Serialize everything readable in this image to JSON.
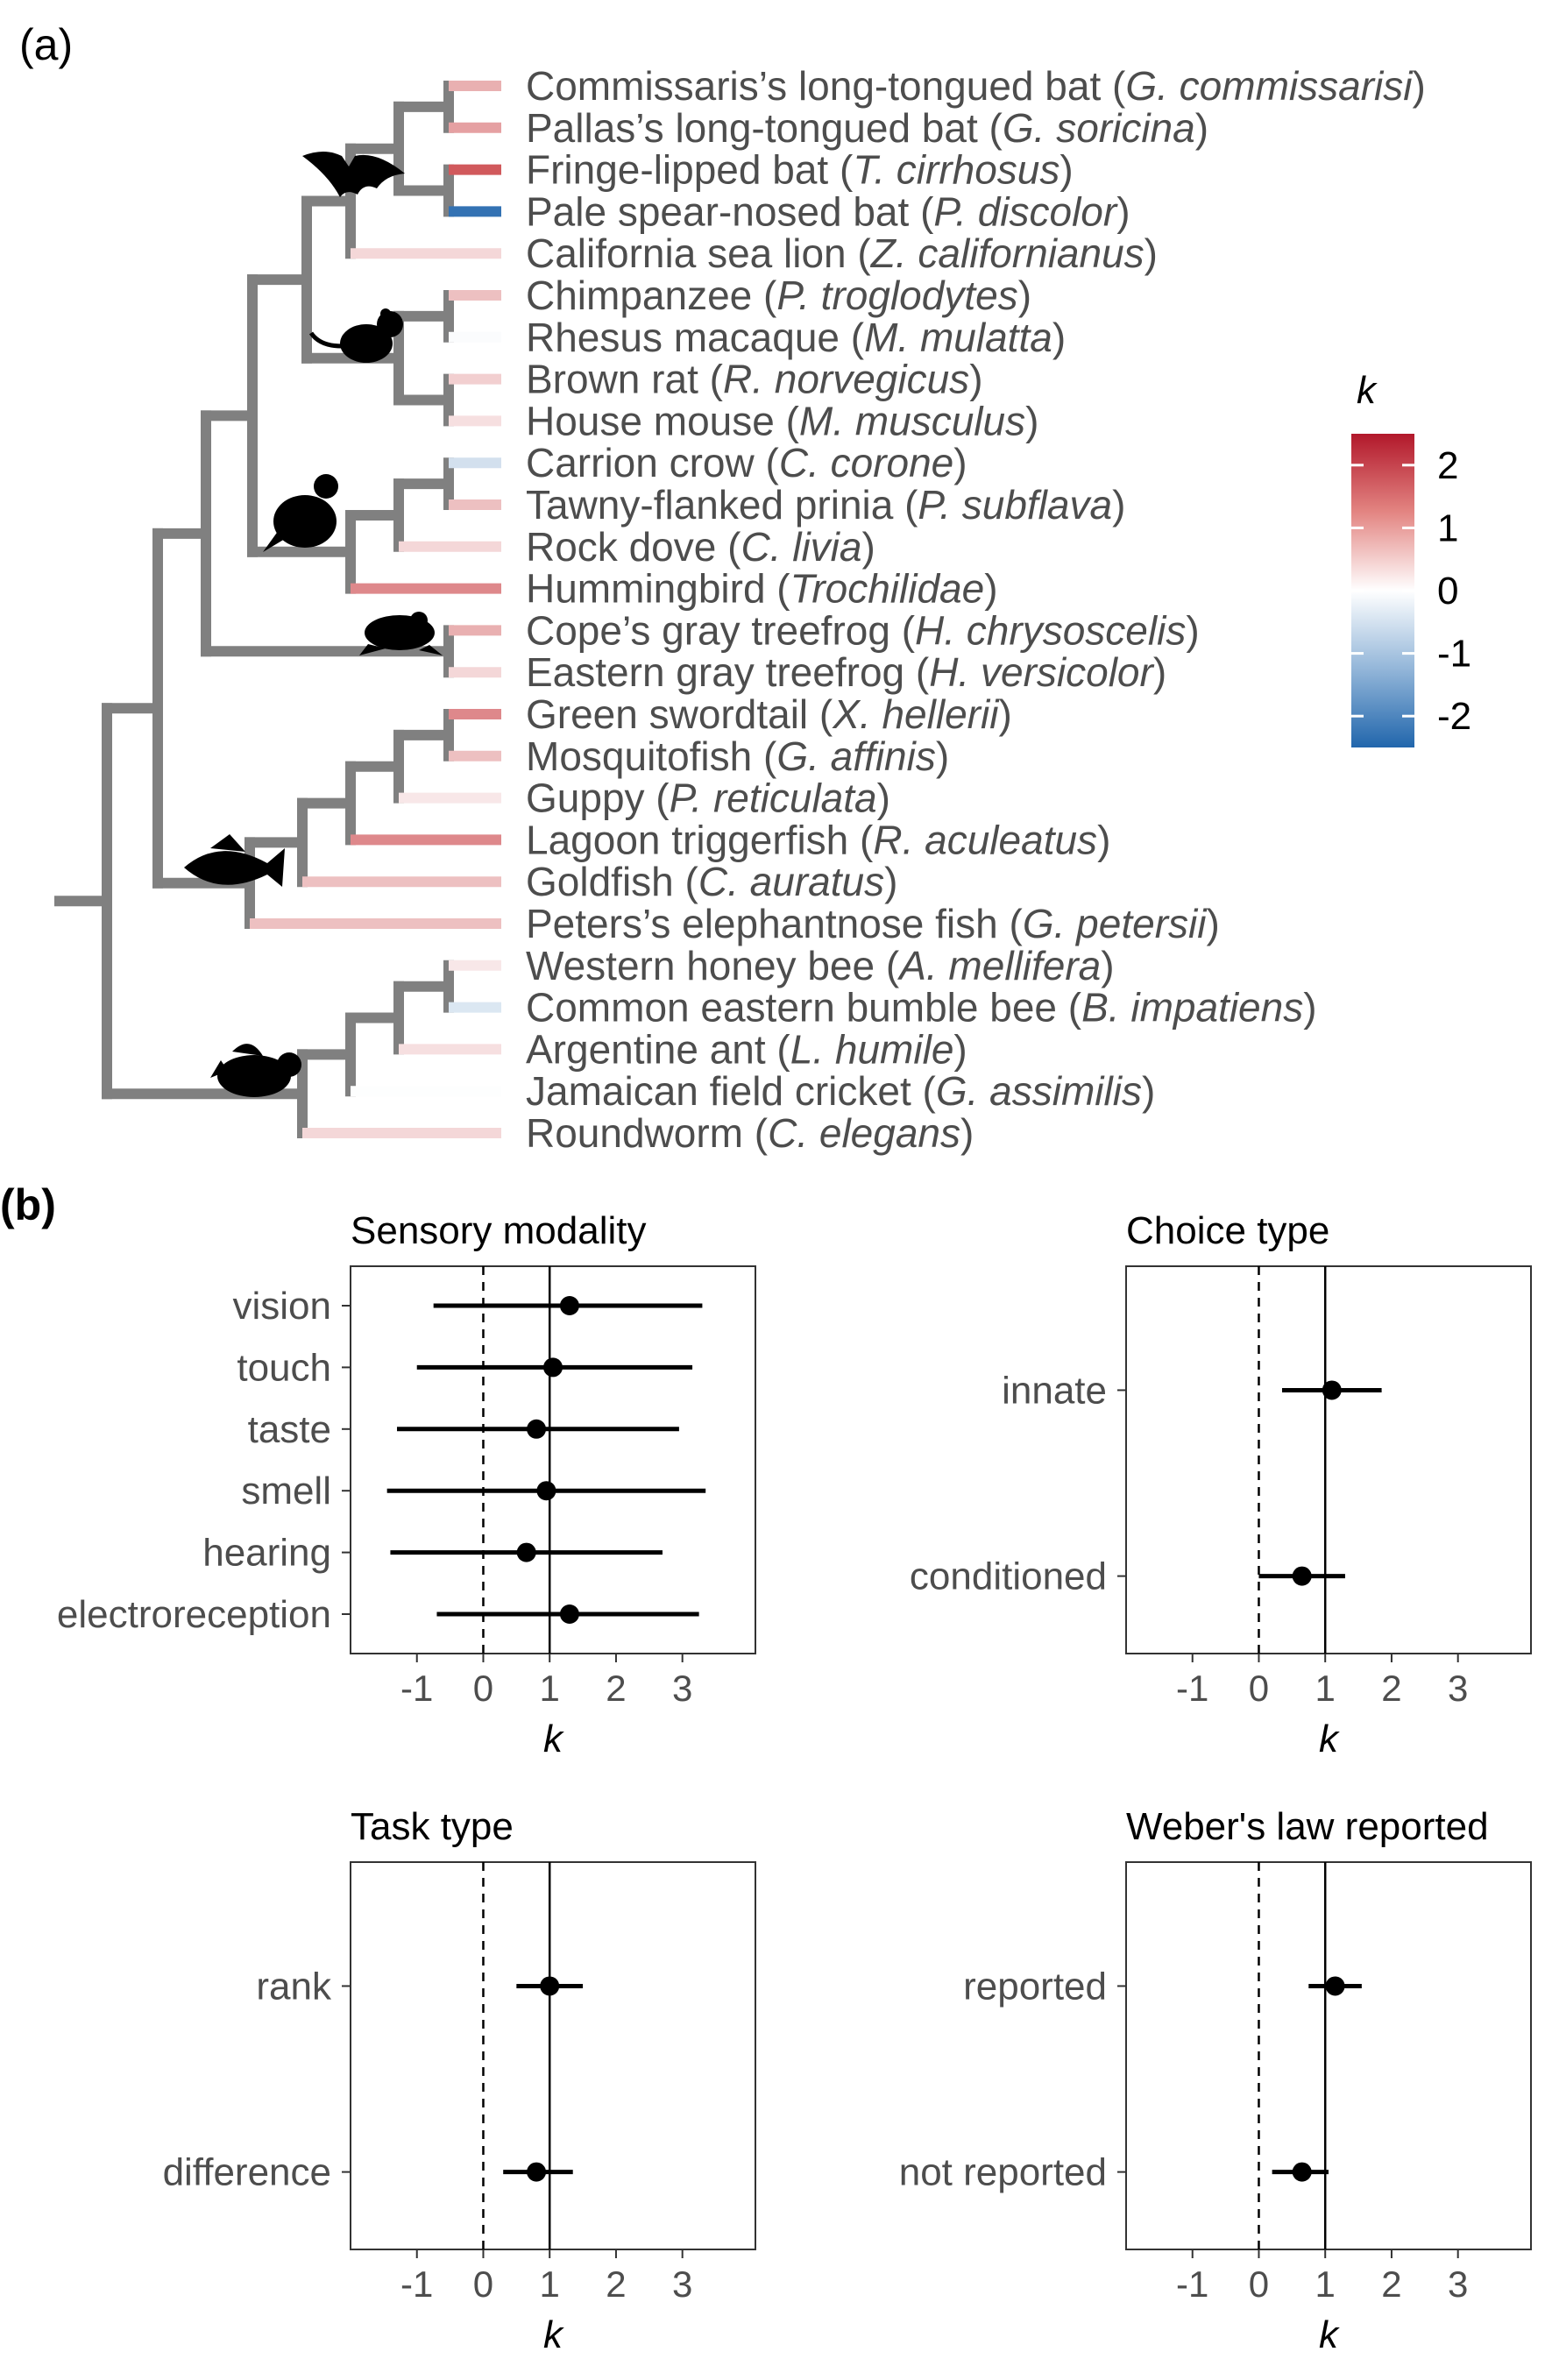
{
  "panel_a_label": "(a)",
  "panel_b_label": "(b)",
  "colors": {
    "tree_gray": "#808080",
    "neg": "#2166ac",
    "mid": "#ffffff",
    "pos": "#c8393d"
  },
  "legend": {
    "title": "k",
    "ticks": [
      "2",
      "1",
      "0",
      "-1",
      "-2"
    ],
    "range": [
      -2.5,
      2.5
    ]
  },
  "tips": [
    {
      "common": "Commissaris’s long-tongued bat",
      "sci": "G.  commissarisi",
      "k": 1.0
    },
    {
      "common": "Pallas’s long-tongued bat",
      "sci": "G.  soricina",
      "k": 1.2
    },
    {
      "common": "Fringe-lipped bat",
      "sci": "T.  cirrhosus",
      "k": 2.1
    },
    {
      "common": "Pale spear-nosed bat",
      "sci": "P.  discolor",
      "k": -2.3
    },
    {
      "common": "California sea lion",
      "sci": "Z.  californianus",
      "k": 0.5
    },
    {
      "common": "Chimpanzee",
      "sci": "P.  troglodytes",
      "k": 0.8
    },
    {
      "common": "Rhesus macaque",
      "sci": "M.  mulatta",
      "k": -0.05
    },
    {
      "common": "Brown rat",
      "sci": "R.  norvegicus",
      "k": 0.6
    },
    {
      "common": "House mouse",
      "sci": "M.  musculus",
      "k": 0.4
    },
    {
      "common": "Carrion crow",
      "sci": "C.  corone",
      "k": -0.5
    },
    {
      "common": "Tawny-flanked prinia",
      "sci": "P.  subflava",
      "k": 0.8
    },
    {
      "common": "Rock dove",
      "sci": "C.  livia",
      "k": 0.5
    },
    {
      "common": "Hummingbird",
      "sci": "Trochilidae",
      "k": 1.5
    },
    {
      "common": "Cope’s gray treefrog",
      "sci": "H.  chrysoscelis",
      "k": 1.0
    },
    {
      "common": "Eastern gray treefrog",
      "sci": "H.  versicolor",
      "k": 0.5
    },
    {
      "common": "Green swordtail",
      "sci": "X.  hellerii",
      "k": 1.5
    },
    {
      "common": "Mosquitofish",
      "sci": "G.  affinis",
      "k": 0.8
    },
    {
      "common": "Guppy",
      "sci": "P.  reticulata",
      "k": 0.3
    },
    {
      "common": "Lagoon triggerfish",
      "sci": "R.  aculeatus",
      "k": 1.5
    },
    {
      "common": "Goldfish",
      "sci": "C.  auratus",
      "k": 0.8
    },
    {
      "common": "Peters’s elephantnose fish",
      "sci": "G.  petersii",
      "k": 0.8
    },
    {
      "common": "Western honey bee",
      "sci": "A.  mellifera",
      "k": 0.3
    },
    {
      "common": "Common eastern bumble bee",
      "sci": "B.  impatiens",
      "k": -0.4
    },
    {
      "common": "Argentine ant",
      "sci": "L.  humile",
      "k": 0.4
    },
    {
      "common": "Jamaican field cricket",
      "sci": "G.  assimilis",
      "k": -0.02
    },
    {
      "common": "Roundworm",
      "sci": "C.  elegans",
      "k": 0.5
    }
  ],
  "chart_data": [
    {
      "type": "forest",
      "title": "Sensory modality",
      "xlabel": "k",
      "xlim": [
        -2,
        4.1
      ],
      "xticks": [
        -1,
        0,
        1,
        2,
        3
      ],
      "dashed_x": 0,
      "solid_x": 1,
      "categories": [
        "vision",
        "touch",
        "taste",
        "smell",
        "hearing",
        "electroreception"
      ],
      "estimate": [
        1.3,
        1.05,
        0.8,
        0.95,
        0.65,
        1.3
      ],
      "lower": [
        -0.75,
        -1.0,
        -1.3,
        -1.45,
        -1.4,
        -0.7
      ],
      "upper": [
        3.3,
        3.15,
        2.95,
        3.35,
        2.7,
        3.25
      ]
    },
    {
      "type": "forest",
      "title": "Choice type",
      "xlabel": "k",
      "xlim": [
        -2,
        4.1
      ],
      "xticks": [
        -1,
        0,
        1,
        2,
        3
      ],
      "dashed_x": 0,
      "solid_x": 1,
      "categories": [
        "innate",
        "conditioned"
      ],
      "estimate": [
        1.1,
        0.65
      ],
      "lower": [
        0.35,
        0.0
      ],
      "upper": [
        1.85,
        1.3
      ]
    },
    {
      "type": "forest",
      "title": "Task type",
      "xlabel": "k",
      "xlim": [
        -2,
        4.1
      ],
      "xticks": [
        -1,
        0,
        1,
        2,
        3
      ],
      "dashed_x": 0,
      "solid_x": 1,
      "categories": [
        "rank",
        "difference"
      ],
      "estimate": [
        1.0,
        0.8
      ],
      "lower": [
        0.5,
        0.3
      ],
      "upper": [
        1.5,
        1.35
      ]
    },
    {
      "type": "forest",
      "title": "Weber's law reported",
      "xlabel": "k",
      "xlim": [
        -2,
        4.1
      ],
      "xticks": [
        -1,
        0,
        1,
        2,
        3
      ],
      "dashed_x": 0,
      "solid_x": 1,
      "categories": [
        "reported",
        "not reported"
      ],
      "estimate": [
        1.15,
        0.65
      ],
      "lower": [
        0.75,
        0.2
      ],
      "upper": [
        1.55,
        1.05
      ]
    }
  ]
}
